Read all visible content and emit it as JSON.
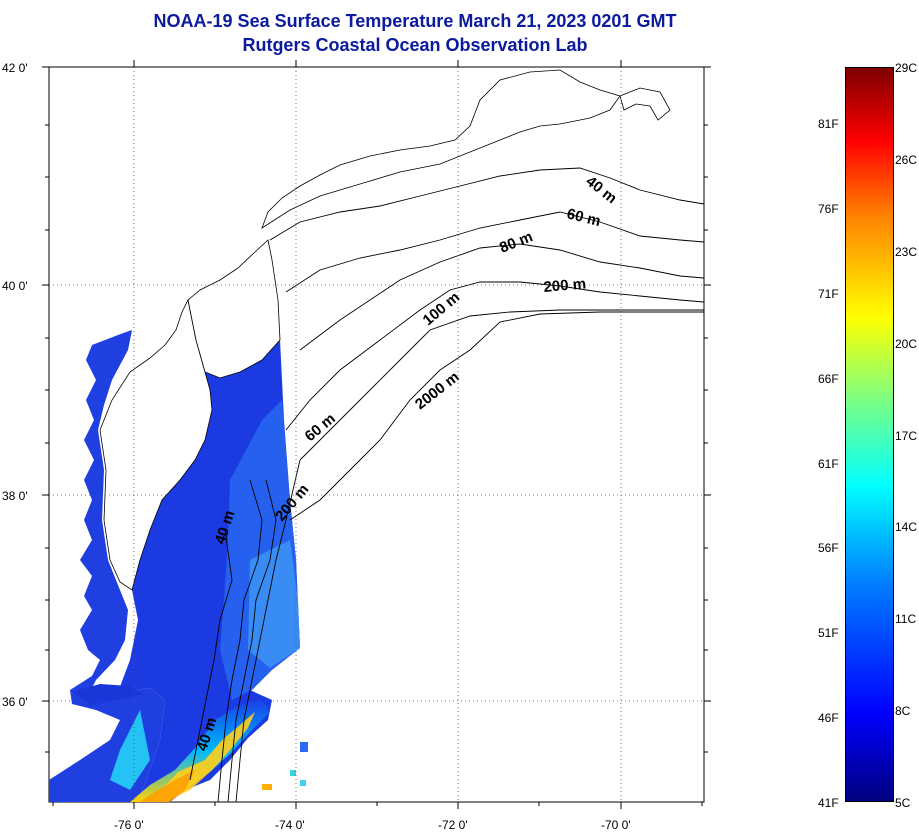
{
  "title": {
    "line1": "NOAA-19 Sea Surface Temperature March 21, 2023 0201 GMT",
    "line2": "Rutgers Coastal Ocean Observation Lab"
  },
  "axes": {
    "lat_labels": [
      "42 0'",
      "40 0'",
      "38 0'",
      "36 0'"
    ],
    "lon_labels": [
      "-76 0'",
      "-74 0'",
      "-72 0'",
      "-70 0'"
    ]
  },
  "contour_labels": [
    "40 m",
    "60 m",
    "80 m",
    "200 m",
    "100 m",
    "2000 m",
    "60 m",
    "200 m",
    "40 m",
    "40 m"
  ],
  "colorbar": {
    "celsius_labels": [
      "29C",
      "26C",
      "23C",
      "20C",
      "17C",
      "14C",
      "11C",
      "8C",
      "5C"
    ],
    "fahrenheit_labels": [
      "81F",
      "76F",
      "71F",
      "66F",
      "61F",
      "56F",
      "51F",
      "46F",
      "41F"
    ],
    "range_c": [
      5,
      29
    ],
    "range_f": [
      41,
      84.2
    ]
  },
  "colors": {
    "title": "#0b1a9e",
    "cold": "#1a2be0",
    "warm": "#ffd000",
    "land": "#ffffff",
    "coastline": "#000000"
  }
}
